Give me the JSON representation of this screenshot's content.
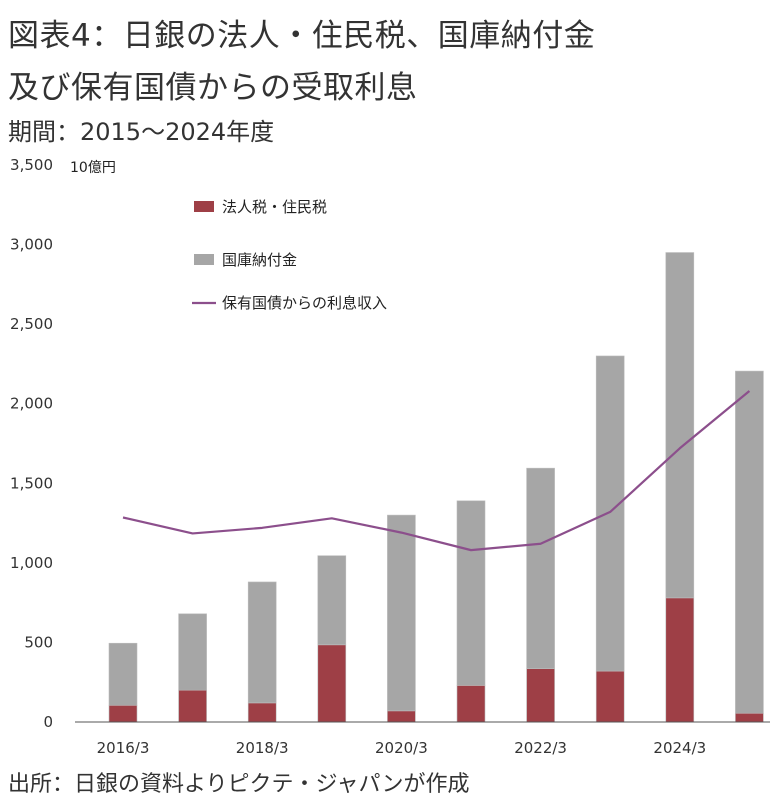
{
  "header": {
    "title_line_1": "図表4：日銀の法人・住民税、国庫納付金",
    "title_line_2": "及び保有国債からの受取利息",
    "period": "期間：2015～2024年度"
  },
  "footer": {
    "source": "出所：日銀の資料よりピクテ・ジャパンが作成"
  },
  "chart_data": {
    "type": "bar",
    "stacked": true,
    "unit_label": "10億円",
    "categories": [
      "2015",
      "2016",
      "2017",
      "2018",
      "2019",
      "2020",
      "2021",
      "2022",
      "2023",
      "2024"
    ],
    "x_tick_labels": [
      "2016/3",
      "",
      "2018/3",
      "",
      "2020/3",
      "",
      "2022/3",
      "",
      "2024/3",
      ""
    ],
    "y_ticks": [
      "0",
      "500",
      "1,000",
      "1,500",
      "2,000",
      "2,500",
      "3,000",
      "3,500"
    ],
    "ylim": [
      0,
      3500
    ],
    "grid": false,
    "legend_position": "top-left",
    "series": [
      {
        "name": "法人税・住民税",
        "kind": "bar",
        "color": "#9e3f46",
        "values": [
          105,
          200,
          120,
          485,
          70,
          230,
          335,
          320,
          780,
          55
        ]
      },
      {
        "name": "国庫納付金",
        "kind": "bar",
        "color": "#a6a6a6",
        "values": [
          390,
          480,
          760,
          560,
          1230,
          1160,
          1260,
          1980,
          2170,
          2150
        ]
      },
      {
        "name": "保有国債からの利息収入",
        "kind": "line",
        "color": "#8c4f8c",
        "values": [
          1285,
          1185,
          1220,
          1280,
          1190,
          1080,
          1120,
          1320,
          1720,
          2080
        ]
      }
    ]
  }
}
